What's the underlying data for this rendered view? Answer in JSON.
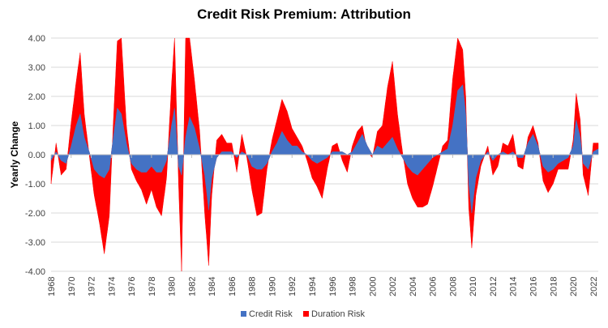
{
  "chart_data": {
    "type": "area",
    "title": "Credit Risk Premium: Attribution",
    "xlabel": "",
    "ylabel": "Yearly Change",
    "xlim": [
      1968,
      2022.5
    ],
    "ylim": [
      -4.0,
      4.0
    ],
    "y_ticks": [
      "4.00",
      "3.00",
      "2.00",
      "1.00",
      "0.00",
      "-1.00",
      "-2.00",
      "-3.00",
      "-4.00"
    ],
    "x_ticks": [
      "1968",
      "1970",
      "1972",
      "1974",
      "1976",
      "1978",
      "1980",
      "1982",
      "1984",
      "1986",
      "1988",
      "1990",
      "1992",
      "1994",
      "1996",
      "1998",
      "2000",
      "2002",
      "2004",
      "2006",
      "2008",
      "2010",
      "2012",
      "2014",
      "2016",
      "2018",
      "2020",
      "2022"
    ],
    "grid": "horizontal",
    "legend_position": "bottom",
    "stacked": true,
    "series": [
      {
        "name": "Credit Risk",
        "color": "#4472C4",
        "points": [
          [
            1968.0,
            -0.2
          ],
          [
            1968.5,
            0.1
          ],
          [
            1969.0,
            -0.2
          ],
          [
            1969.5,
            -0.3
          ],
          [
            1970.0,
            0.3
          ],
          [
            1970.5,
            1.0
          ],
          [
            1970.9,
            1.4
          ],
          [
            1971.3,
            0.6
          ],
          [
            1971.8,
            0.1
          ],
          [
            1972.3,
            -0.5
          ],
          [
            1972.8,
            -0.7
          ],
          [
            1973.3,
            -0.8
          ],
          [
            1973.8,
            -0.5
          ],
          [
            1974.2,
            0.6
          ],
          [
            1974.6,
            1.6
          ],
          [
            1975.0,
            1.4
          ],
          [
            1975.5,
            0.4
          ],
          [
            1976.0,
            -0.3
          ],
          [
            1976.5,
            -0.5
          ],
          [
            1977.0,
            -0.6
          ],
          [
            1977.5,
            -0.6
          ],
          [
            1978.0,
            -0.4
          ],
          [
            1978.5,
            -0.6
          ],
          [
            1979.0,
            -0.6
          ],
          [
            1979.5,
            -0.2
          ],
          [
            1980.0,
            1.0
          ],
          [
            1980.3,
            1.6
          ],
          [
            1980.7,
            -0.4
          ],
          [
            1981.0,
            -0.7
          ],
          [
            1981.4,
            0.6
          ],
          [
            1981.8,
            1.3
          ],
          [
            1982.3,
            0.9
          ],
          [
            1982.8,
            0.2
          ],
          [
            1983.3,
            -0.7
          ],
          [
            1983.7,
            -1.9
          ],
          [
            1984.0,
            -0.8
          ],
          [
            1984.5,
            -0.1
          ],
          [
            1985.0,
            0.1
          ],
          [
            1985.5,
            0.1
          ],
          [
            1986.0,
            0.1
          ],
          [
            1986.5,
            -0.1
          ],
          [
            1987.0,
            0.1
          ],
          [
            1987.5,
            0.0
          ],
          [
            1988.0,
            -0.4
          ],
          [
            1988.5,
            -0.5
          ],
          [
            1989.0,
            -0.5
          ],
          [
            1989.5,
            -0.3
          ],
          [
            1990.0,
            0.1
          ],
          [
            1990.5,
            0.4
          ],
          [
            1991.0,
            0.8
          ],
          [
            1991.5,
            0.5
          ],
          [
            1992.0,
            0.3
          ],
          [
            1992.5,
            0.3
          ],
          [
            1993.0,
            0.1
          ],
          [
            1993.5,
            0.0
          ],
          [
            1994.0,
            -0.2
          ],
          [
            1994.5,
            -0.3
          ],
          [
            1995.0,
            -0.2
          ],
          [
            1995.5,
            -0.1
          ],
          [
            1996.0,
            0.1
          ],
          [
            1996.5,
            0.1
          ],
          [
            1997.0,
            0.1
          ],
          [
            1997.5,
            0.0
          ],
          [
            1998.0,
            0.1
          ],
          [
            1998.5,
            0.4
          ],
          [
            1999.0,
            0.7
          ],
          [
            1999.5,
            0.3
          ],
          [
            2000.0,
            0.0
          ],
          [
            2000.5,
            0.3
          ],
          [
            2001.0,
            0.2
          ],
          [
            2001.5,
            0.4
          ],
          [
            2002.0,
            0.6
          ],
          [
            2002.5,
            0.2
          ],
          [
            2003.0,
            -0.1
          ],
          [
            2003.5,
            -0.4
          ],
          [
            2004.0,
            -0.6
          ],
          [
            2004.5,
            -0.7
          ],
          [
            2005.0,
            -0.5
          ],
          [
            2005.5,
            -0.3
          ],
          [
            2006.0,
            -0.1
          ],
          [
            2006.5,
            0.0
          ],
          [
            2007.0,
            0.1
          ],
          [
            2007.5,
            0.2
          ],
          [
            2008.0,
            1.0
          ],
          [
            2008.5,
            2.2
          ],
          [
            2009.0,
            2.4
          ],
          [
            2009.3,
            1.4
          ],
          [
            2009.6,
            -1.0
          ],
          [
            2009.9,
            -2.0
          ],
          [
            2010.3,
            -0.8
          ],
          [
            2010.8,
            -0.2
          ],
          [
            2011.5,
            0.1
          ],
          [
            2012.0,
            -0.2
          ],
          [
            2012.5,
            0.0
          ],
          [
            2013.0,
            0.1
          ],
          [
            2013.5,
            0.0
          ],
          [
            2014.0,
            0.1
          ],
          [
            2014.5,
            -0.1
          ],
          [
            2015.0,
            -0.1
          ],
          [
            2015.5,
            0.4
          ],
          [
            2016.0,
            0.7
          ],
          [
            2016.5,
            0.3
          ],
          [
            2017.0,
            -0.4
          ],
          [
            2017.5,
            -0.6
          ],
          [
            2018.0,
            -0.5
          ],
          [
            2018.5,
            -0.3
          ],
          [
            2019.0,
            -0.2
          ],
          [
            2019.5,
            -0.1
          ],
          [
            2020.0,
            0.3
          ],
          [
            2020.3,
            1.2
          ],
          [
            2020.7,
            0.6
          ],
          [
            2021.0,
            -0.3
          ],
          [
            2021.5,
            -0.5
          ],
          [
            2022.0,
            0.1
          ],
          [
            2022.5,
            0.2
          ]
        ]
      },
      {
        "name": "Duration Risk",
        "color": "#FF0000",
        "points": [
          [
            1968.0,
            -0.8
          ],
          [
            1968.5,
            0.3
          ],
          [
            1969.0,
            -0.5
          ],
          [
            1969.5,
            -0.2
          ],
          [
            1970.0,
            0.8
          ],
          [
            1970.5,
            1.5
          ],
          [
            1970.9,
            2.1
          ],
          [
            1971.3,
            0.8
          ],
          [
            1971.8,
            -0.1
          ],
          [
            1972.3,
            -0.9
          ],
          [
            1972.8,
            -1.6
          ],
          [
            1973.3,
            -2.6
          ],
          [
            1973.8,
            -1.6
          ],
          [
            1974.2,
            0.5
          ],
          [
            1974.6,
            2.3
          ],
          [
            1975.0,
            2.6
          ],
          [
            1975.5,
            0.6
          ],
          [
            1976.0,
            -0.2
          ],
          [
            1976.5,
            -0.4
          ],
          [
            1977.0,
            -0.6
          ],
          [
            1977.5,
            -1.1
          ],
          [
            1978.0,
            -0.8
          ],
          [
            1978.5,
            -1.2
          ],
          [
            1979.0,
            -1.5
          ],
          [
            1979.5,
            -0.6
          ],
          [
            1980.0,
            1.4
          ],
          [
            1980.3,
            2.4
          ],
          [
            1980.7,
            -0.6
          ],
          [
            1981.0,
            -3.3
          ],
          [
            1981.4,
            3.4
          ],
          [
            1981.8,
            2.7
          ],
          [
            1982.3,
            1.6
          ],
          [
            1982.8,
            0.6
          ],
          [
            1983.3,
            -1.3
          ],
          [
            1983.7,
            -1.9
          ],
          [
            1984.0,
            -0.6
          ],
          [
            1984.5,
            0.6
          ],
          [
            1985.0,
            0.6
          ],
          [
            1985.5,
            0.3
          ],
          [
            1986.0,
            0.3
          ],
          [
            1986.5,
            -0.5
          ],
          [
            1987.0,
            0.6
          ],
          [
            1987.5,
            -0.1
          ],
          [
            1988.0,
            -0.8
          ],
          [
            1988.5,
            -1.6
          ],
          [
            1989.0,
            -1.5
          ],
          [
            1989.5,
            -0.2
          ],
          [
            1990.0,
            0.4
          ],
          [
            1990.5,
            0.8
          ],
          [
            1991.0,
            1.1
          ],
          [
            1991.5,
            1.0
          ],
          [
            1992.0,
            0.6
          ],
          [
            1992.5,
            0.3
          ],
          [
            1993.0,
            0.2
          ],
          [
            1993.5,
            -0.2
          ],
          [
            1994.0,
            -0.6
          ],
          [
            1994.5,
            -0.8
          ],
          [
            1995.0,
            -1.3
          ],
          [
            1995.5,
            -0.4
          ],
          [
            1996.0,
            0.2
          ],
          [
            1996.5,
            0.3
          ],
          [
            1997.0,
            -0.3
          ],
          [
            1997.5,
            -0.6
          ],
          [
            1998.0,
            0.2
          ],
          [
            1998.5,
            0.4
          ],
          [
            1999.0,
            0.3
          ],
          [
            1999.5,
            -0.2
          ],
          [
            2000.0,
            -0.1
          ],
          [
            2000.5,
            0.5
          ],
          [
            2001.0,
            0.8
          ],
          [
            2001.5,
            1.9
          ],
          [
            2002.0,
            2.6
          ],
          [
            2002.5,
            1.2
          ],
          [
            2003.0,
            0.2
          ],
          [
            2003.5,
            -0.6
          ],
          [
            2004.0,
            -0.9
          ],
          [
            2004.5,
            -1.1
          ],
          [
            2005.0,
            -1.3
          ],
          [
            2005.5,
            -1.4
          ],
          [
            2006.0,
            -1.0
          ],
          [
            2006.5,
            -0.4
          ],
          [
            2007.0,
            0.2
          ],
          [
            2007.5,
            0.3
          ],
          [
            2008.0,
            1.6
          ],
          [
            2008.5,
            1.8
          ],
          [
            2009.0,
            1.2
          ],
          [
            2009.3,
            0.6
          ],
          [
            2009.6,
            -0.8
          ],
          [
            2009.9,
            -1.2
          ],
          [
            2010.3,
            -0.6
          ],
          [
            2010.8,
            -0.2
          ],
          [
            2011.5,
            0.2
          ],
          [
            2012.0,
            -0.5
          ],
          [
            2012.5,
            -0.4
          ],
          [
            2013.0,
            0.3
          ],
          [
            2013.5,
            0.3
          ],
          [
            2014.0,
            0.6
          ],
          [
            2014.5,
            -0.3
          ],
          [
            2015.0,
            -0.4
          ],
          [
            2015.5,
            0.2
          ],
          [
            2016.0,
            0.3
          ],
          [
            2016.5,
            0.1
          ],
          [
            2017.0,
            -0.5
          ],
          [
            2017.5,
            -0.7
          ],
          [
            2018.0,
            -0.5
          ],
          [
            2018.5,
            -0.2
          ],
          [
            2019.0,
            -0.3
          ],
          [
            2019.5,
            -0.4
          ],
          [
            2020.0,
            0.2
          ],
          [
            2020.3,
            0.9
          ],
          [
            2020.7,
            0.6
          ],
          [
            2021.0,
            -0.4
          ],
          [
            2021.5,
            -0.9
          ],
          [
            2022.0,
            0.3
          ],
          [
            2022.5,
            0.2
          ]
        ]
      }
    ]
  }
}
